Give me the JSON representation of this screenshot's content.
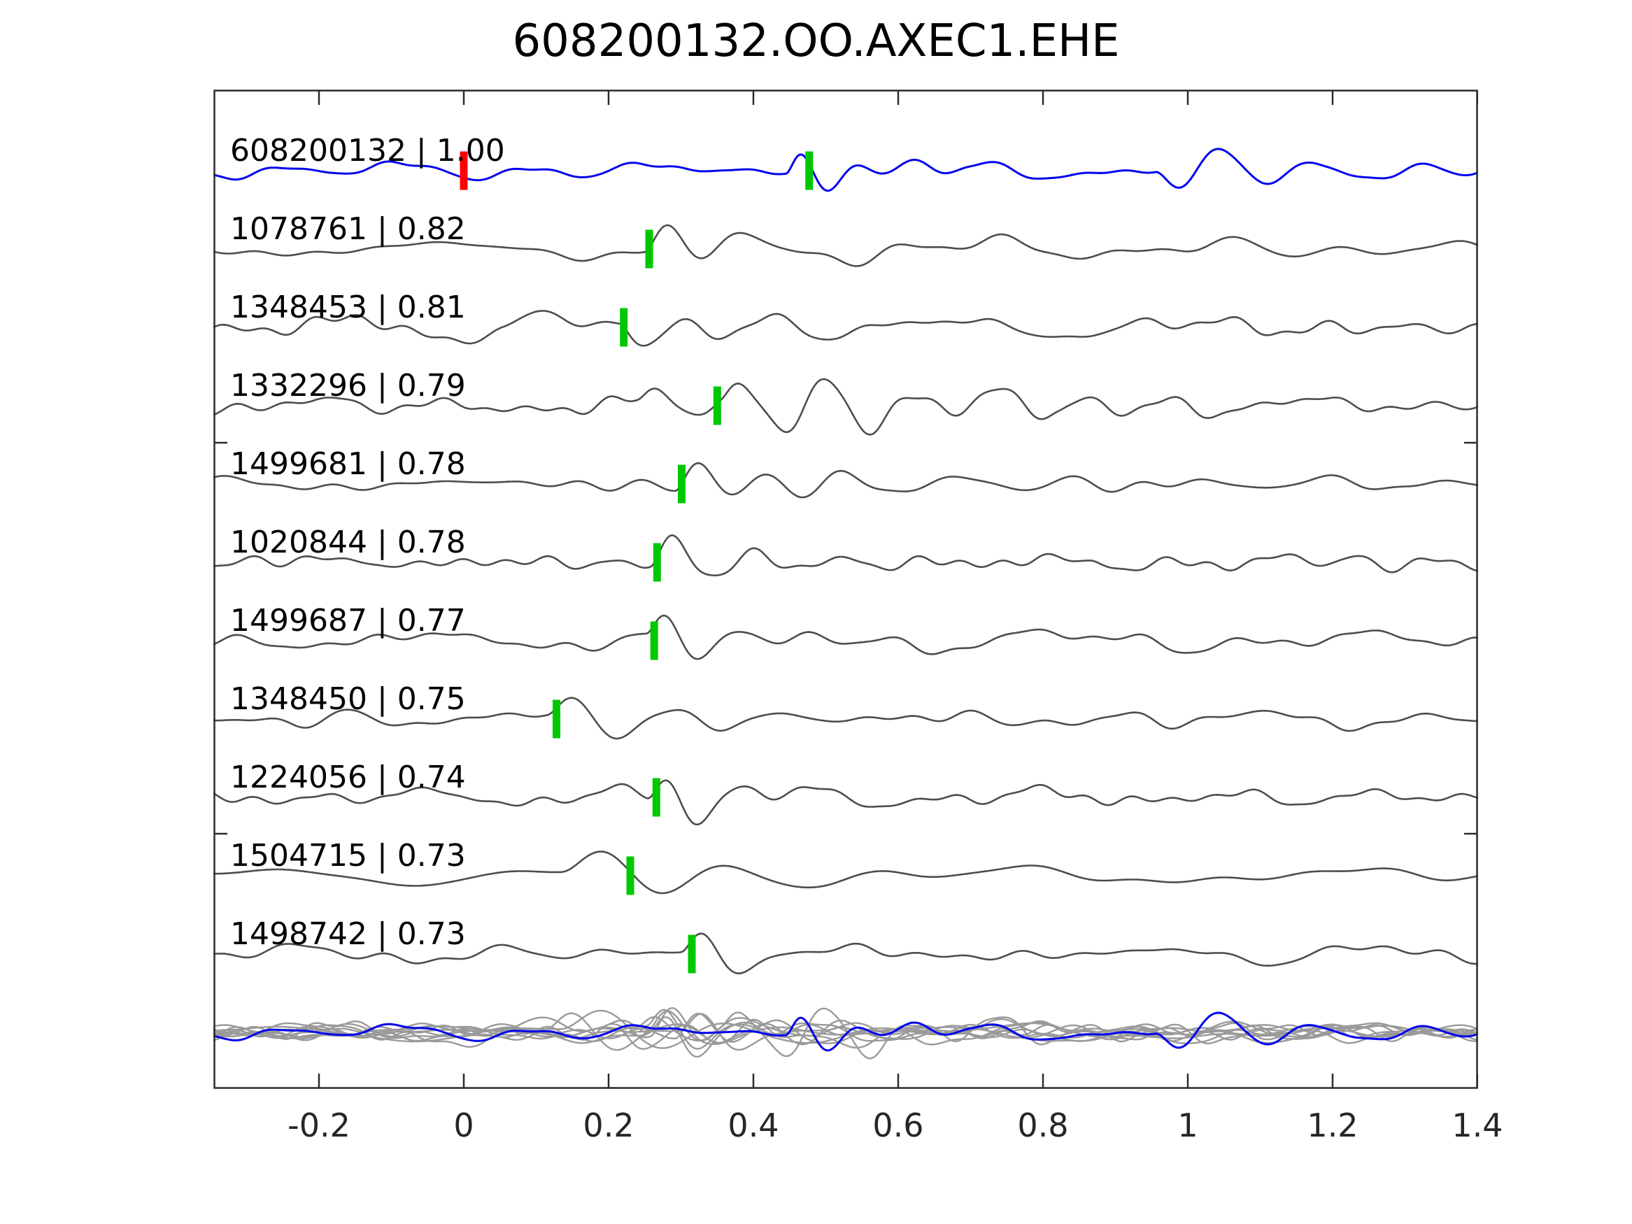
{
  "title": "608200132.OO.AXEC1.EHE",
  "chart_data": {
    "type": "line",
    "title": "608200132.OO.AXEC1.EHE",
    "xlim": [
      -0.346,
      1.401
    ],
    "x_tick_labels": [
      "-0.2",
      "0",
      "0.2",
      "0.4",
      "0.6",
      "0.8",
      "1",
      "1.2",
      "1.4"
    ],
    "x_tick_values": [
      -0.2,
      0,
      0.2,
      0.4,
      0.6,
      0.8,
      1.0,
      1.2,
      1.4
    ],
    "grid": false,
    "legend": "none",
    "colors": {
      "template_trace": "#0404ee",
      "match_trace": "#4d4d4d",
      "overlay_match_trace": "#9a9a9a",
      "pick_marker": "#00c800",
      "reference_marker": "#ff0000",
      "axis": "#2b2b2b",
      "text": "#000000"
    },
    "reference_marker_x": 0.0,
    "traces": [
      {
        "id": "608200132",
        "correlation": "1.00",
        "label": "608200132 | 1.00",
        "role": "template",
        "pick_x": 0.477,
        "waveform": {
          "seed": 11,
          "noise": 5.5,
          "fscale": 1.0,
          "events": [
            [
              0.445,
              42,
              12.5,
              0.085,
              0.012
            ],
            [
              0.7,
              10,
              10,
              0.15,
              0.05
            ],
            [
              0.955,
              -60,
              8.0,
              0.13,
              0.03
            ],
            [
              1.18,
              18,
              7,
              0.2,
              0.05
            ],
            [
              0.55,
              12,
              7,
              0.45,
              0.1
            ]
          ]
        }
      },
      {
        "id": "1078761",
        "correlation": "0.82",
        "label": "1078761 | 0.82",
        "role": "match",
        "pick_x": 0.256,
        "waveform": {
          "seed": 22,
          "noise": 7,
          "fscale": 1.0,
          "events": [
            [
              0.25,
              52,
              9,
              0.11,
              0.02
            ],
            [
              0.42,
              14,
              6.5,
              0.5,
              0.1
            ]
          ]
        }
      },
      {
        "id": "1348453",
        "correlation": "0.81",
        "label": "1348453 | 0.81",
        "role": "match",
        "pick_x": 0.221,
        "waveform": {
          "seed": 33,
          "noise": 8,
          "fscale": 1.0,
          "events": [
            [
              0.055,
              30,
              6.5,
              0.12,
              0.05
            ],
            [
              0.215,
              -48,
              9,
              0.11,
              0.02
            ],
            [
              0.4,
              13,
              6.5,
              0.5,
              0.1
            ]
          ]
        }
      },
      {
        "id": "1332296",
        "correlation": "0.79",
        "label": "1332296 | 0.79",
        "role": "match",
        "pick_x": 0.35,
        "waveform": {
          "seed": 44,
          "noise": 9,
          "fscale": 1.0,
          "events": [
            [
              0.24,
              26,
              9,
              0.09,
              0.02
            ],
            [
              0.355,
              44,
              8.5,
              0.33,
              0.02
            ],
            [
              0.82,
              22,
              8,
              0.15,
              0.04
            ]
          ]
        }
      },
      {
        "id": "1499681",
        "correlation": "0.78",
        "label": "1499681 | 0.78",
        "role": "match",
        "pick_x": 0.301,
        "waveform": {
          "seed": 55,
          "noise": 8,
          "fscale": 1.0,
          "events": [
            [
              0.292,
              47,
              9.5,
              0.115,
              0.018
            ],
            [
              0.48,
              11,
              6.5,
              0.45,
              0.1
            ]
          ]
        }
      },
      {
        "id": "1020844",
        "correlation": "0.78",
        "label": "1020844 | 0.78",
        "role": "match",
        "pick_x": 0.267,
        "waveform": {
          "seed": 66,
          "noise": 7,
          "fscale": 1.0,
          "events": [
            [
              0.258,
              49,
              9,
              0.105,
              0.018
            ],
            [
              0.865,
              -30,
              7.5,
              0.12,
              0.04
            ],
            [
              0.45,
              10,
              6,
              0.4,
              0.1
            ]
          ]
        }
      },
      {
        "id": "1499687",
        "correlation": "0.77",
        "label": "1499687 | 0.77",
        "role": "match",
        "pick_x": 0.263,
        "waveform": {
          "seed": 77,
          "noise": 8,
          "fscale": 1.0,
          "events": [
            [
              0.252,
              49,
              10,
              0.1,
              0.018
            ],
            [
              0.43,
              11,
              6.5,
              0.45,
              0.1
            ]
          ]
        }
      },
      {
        "id": "1348450",
        "correlation": "0.75",
        "label": "1348450 | 0.75",
        "role": "match",
        "pick_x": 0.128,
        "waveform": {
          "seed": 88,
          "noise": 8,
          "fscale": 0.9,
          "events": [
            [
              0.115,
              45,
              7.5,
              0.15,
              0.03
            ],
            [
              0.35,
              12,
              5.5,
              0.5,
              0.1
            ],
            [
              1.22,
              -16,
              4.5,
              0.25,
              0.08
            ]
          ]
        }
      },
      {
        "id": "1224056",
        "correlation": "0.74",
        "label": "1224056 | 0.74",
        "role": "match",
        "pick_x": 0.266,
        "waveform": {
          "seed": 99,
          "noise": 8,
          "fscale": 1.0,
          "events": [
            [
              0.253,
              44,
              10,
              0.1,
              0.018
            ],
            [
              0.45,
              10,
              7,
              0.4,
              0.1
            ]
          ]
        }
      },
      {
        "id": "1504715",
        "correlation": "0.73",
        "label": "1504715 | 0.73",
        "role": "match",
        "pick_x": 0.23,
        "waveform": {
          "seed": 110,
          "noise": 4.5,
          "fscale": 0.7,
          "events": [
            [
              0.135,
              52,
              5.2,
              0.24,
              0.055
            ],
            [
              0.55,
              8,
              4.5,
              0.5,
              0.1
            ]
          ]
        }
      },
      {
        "id": "1498742",
        "correlation": "0.73",
        "label": "1498742 | 0.73",
        "role": "match",
        "pick_x": 0.315,
        "waveform": {
          "seed": 121,
          "noise": 7,
          "fscale": 1.0,
          "events": [
            [
              0.3,
              44,
              9.5,
              0.105,
              0.02
            ],
            [
              0.5,
              10,
              6.5,
              0.45,
              0.1
            ]
          ]
        }
      }
    ],
    "overlay": {
      "description_visible": false,
      "gray_traces_are_matches": true,
      "blue_trace_is_template": true
    }
  }
}
